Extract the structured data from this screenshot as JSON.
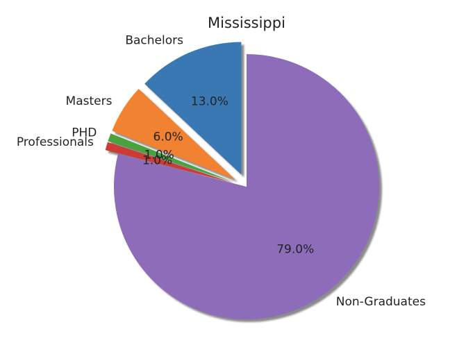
{
  "chart_data": {
    "type": "pie",
    "title": "Mississippi",
    "start_angle_deg": 90,
    "direction": "counterclockwise",
    "shadow": true,
    "slices": [
      {
        "label": "Bachelors",
        "value": 13.0,
        "pct_label": "13.0%",
        "color": "#3a78b4",
        "exploded": true
      },
      {
        "label": "Masters",
        "value": 6.0,
        "pct_label": "6.0%",
        "color": "#f08232",
        "exploded": true
      },
      {
        "label": "PHD",
        "value": 1.0,
        "pct_label": "1.0%",
        "color": "#4aa23f",
        "exploded": true
      },
      {
        "label": "Professionals",
        "value": 1.0,
        "pct_label": "1.0%",
        "color": "#cc3b36",
        "exploded": true
      },
      {
        "label": "Non-Graduates",
        "value": 79.0,
        "pct_label": "79.0%",
        "color": "#8d6cb9",
        "exploded": false
      }
    ]
  }
}
